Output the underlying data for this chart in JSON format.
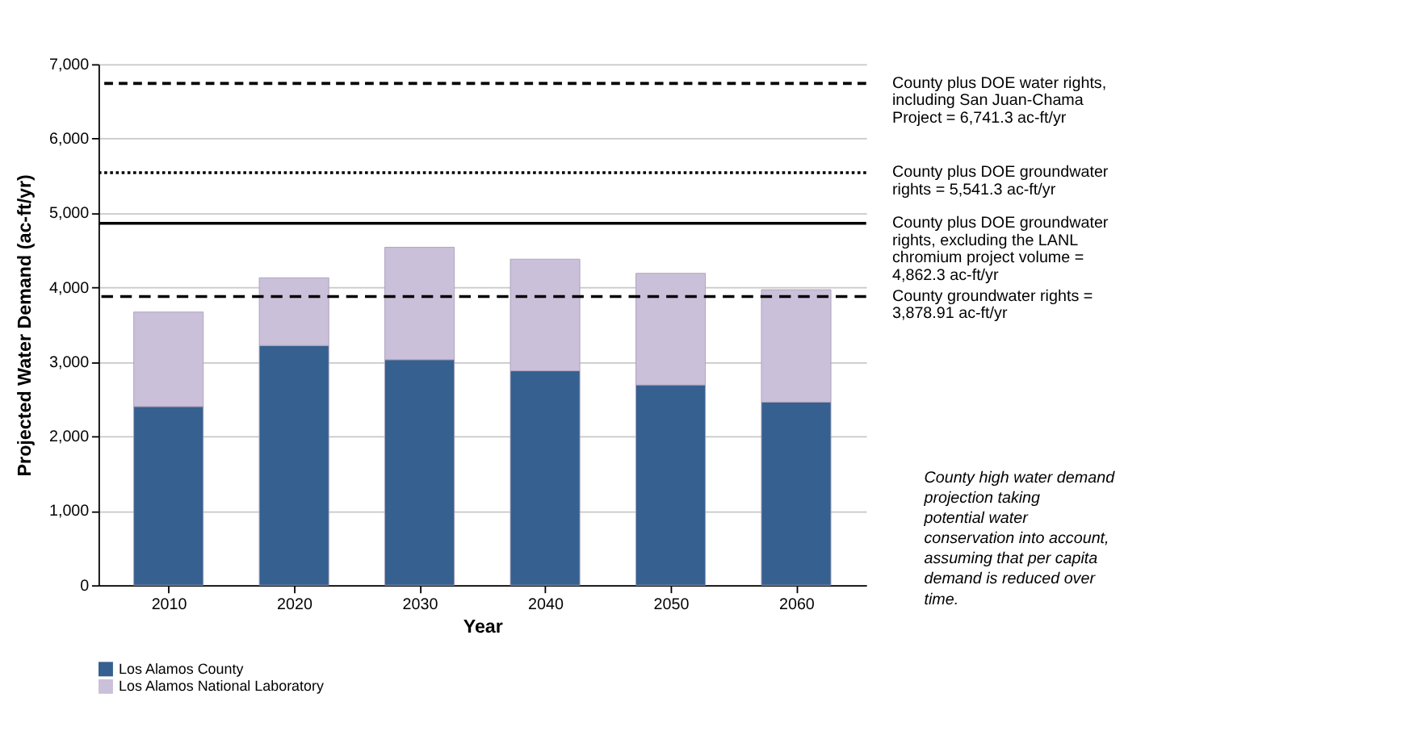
{
  "chart_data": {
    "type": "bar",
    "stacked": true,
    "xlabel": "Year",
    "ylabel": "Projected Water Demand (ac-ft/yr)",
    "categories": [
      "2010",
      "2020",
      "2030",
      "2040",
      "2050",
      "2060"
    ],
    "series": [
      {
        "name": "Los Alamos County",
        "color": "#35608f",
        "values": [
          2400,
          3220,
          3030,
          2880,
          2690,
          2460
        ]
      },
      {
        "name": "Los Alamos National Laboratory",
        "color": "#cbc0d9",
        "values": [
          1270,
          910,
          1510,
          1500,
          1500,
          1510
        ]
      }
    ],
    "ylim": [
      0,
      7000
    ],
    "yticks": [
      0,
      {
        "value": 1000,
        "label": "1,000"
      },
      {
        "value": 2000,
        "label": "2,000"
      },
      {
        "value": 3000,
        "label": "3,000"
      },
      {
        "value": 4000,
        "label": "4,000"
      },
      {
        "value": 5000,
        "label": "5,000"
      },
      {
        "value": 6000,
        "label": "6,000"
      },
      {
        "value": 7000,
        "label": "7,000"
      }
    ],
    "grid": "y",
    "legend": "bottom",
    "ref_lines": [
      {
        "axis": "y",
        "value": 6741.3,
        "label": "County plus DOE water rights, including San Juan-Chama Project = 6,741.3 ac-ft/yr",
        "color": "#000000",
        "line_style": "dashed"
      },
      {
        "axis": "y",
        "value": 5541.3,
        "label": "County plus DOE groundwater rights = 5,541.3 ac-ft/yr",
        "color": "#000000",
        "line_style": "dotted"
      },
      {
        "axis": "y",
        "value": 4862.3,
        "label": "County plus DOE groundwater rights, excluding the LANL chromium project volume = 4,862.3 ac-ft/yr",
        "color": "#000000",
        "line_style": "solid"
      },
      {
        "axis": "y",
        "value": 3878.91,
        "label": "County groundwater rights = 3,878.91 ac-ft/yr",
        "color": "#000000",
        "line_style": "dashed"
      }
    ],
    "annotations": [
      "County high water demand projection taking potential water conservation into account, assuming that per capita demand is reduced over time."
    ]
  }
}
